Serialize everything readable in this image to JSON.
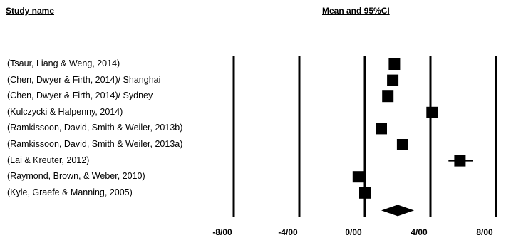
{
  "headers": {
    "study_name": "Study name",
    "statistic": "Mean and 95%CI"
  },
  "chart_data": {
    "type": "forest",
    "title": "Mean and 95%CI",
    "x_ticks": [
      -8,
      -4,
      0,
      4,
      8
    ],
    "x_tick_labels": [
      "-8/00",
      "-4/00",
      "0/00",
      "4/00",
      "8/00"
    ],
    "xlim": [
      -8,
      8
    ],
    "grid": "vertical lines at ticks",
    "studies": [
      {
        "label": "(Tsaur, Liang & Weng, 2014)",
        "mean": 1.8,
        "lower": 1.7,
        "upper": 1.9
      },
      {
        "label": "(Chen, Dwyer & Firth, 2014)/ Shanghai",
        "mean": 1.7,
        "lower": 1.6,
        "upper": 1.8
      },
      {
        "label": "(Chen, Dwyer & Firth, 2014)/ Sydney",
        "mean": 1.4,
        "lower": 1.3,
        "upper": 1.5
      },
      {
        "label": "(Kulczycki &  Halpenny, 2014)",
        "mean": 4.1,
        "lower": 4.0,
        "upper": 4.2
      },
      {
        "label": "(Ramkissoon, David, Smith & Weiler, 2013b)",
        "mean": 1.0,
        "lower": 0.9,
        "upper": 1.1
      },
      {
        "label": "(Ramkissoon, David, Smith & Weiler, 2013a)",
        "mean": 2.3,
        "lower": 2.2,
        "upper": 2.4
      },
      {
        "label": "(Lai & Kreuter, 2012)",
        "mean": 5.8,
        "lower": 5.1,
        "upper": 6.6
      },
      {
        "label": "(Raymond, Brown, & Weber, 2010)",
        "mean": -0.4,
        "lower": -0.5,
        "upper": -0.3
      },
      {
        "label": "(Kyle, Graefe & Manning, 2005)",
        "mean": 0.0,
        "lower": -0.1,
        "upper": 0.1
      }
    ],
    "summary": {
      "mean": 2.0,
      "lower": 1.0,
      "upper": 3.0
    }
  }
}
